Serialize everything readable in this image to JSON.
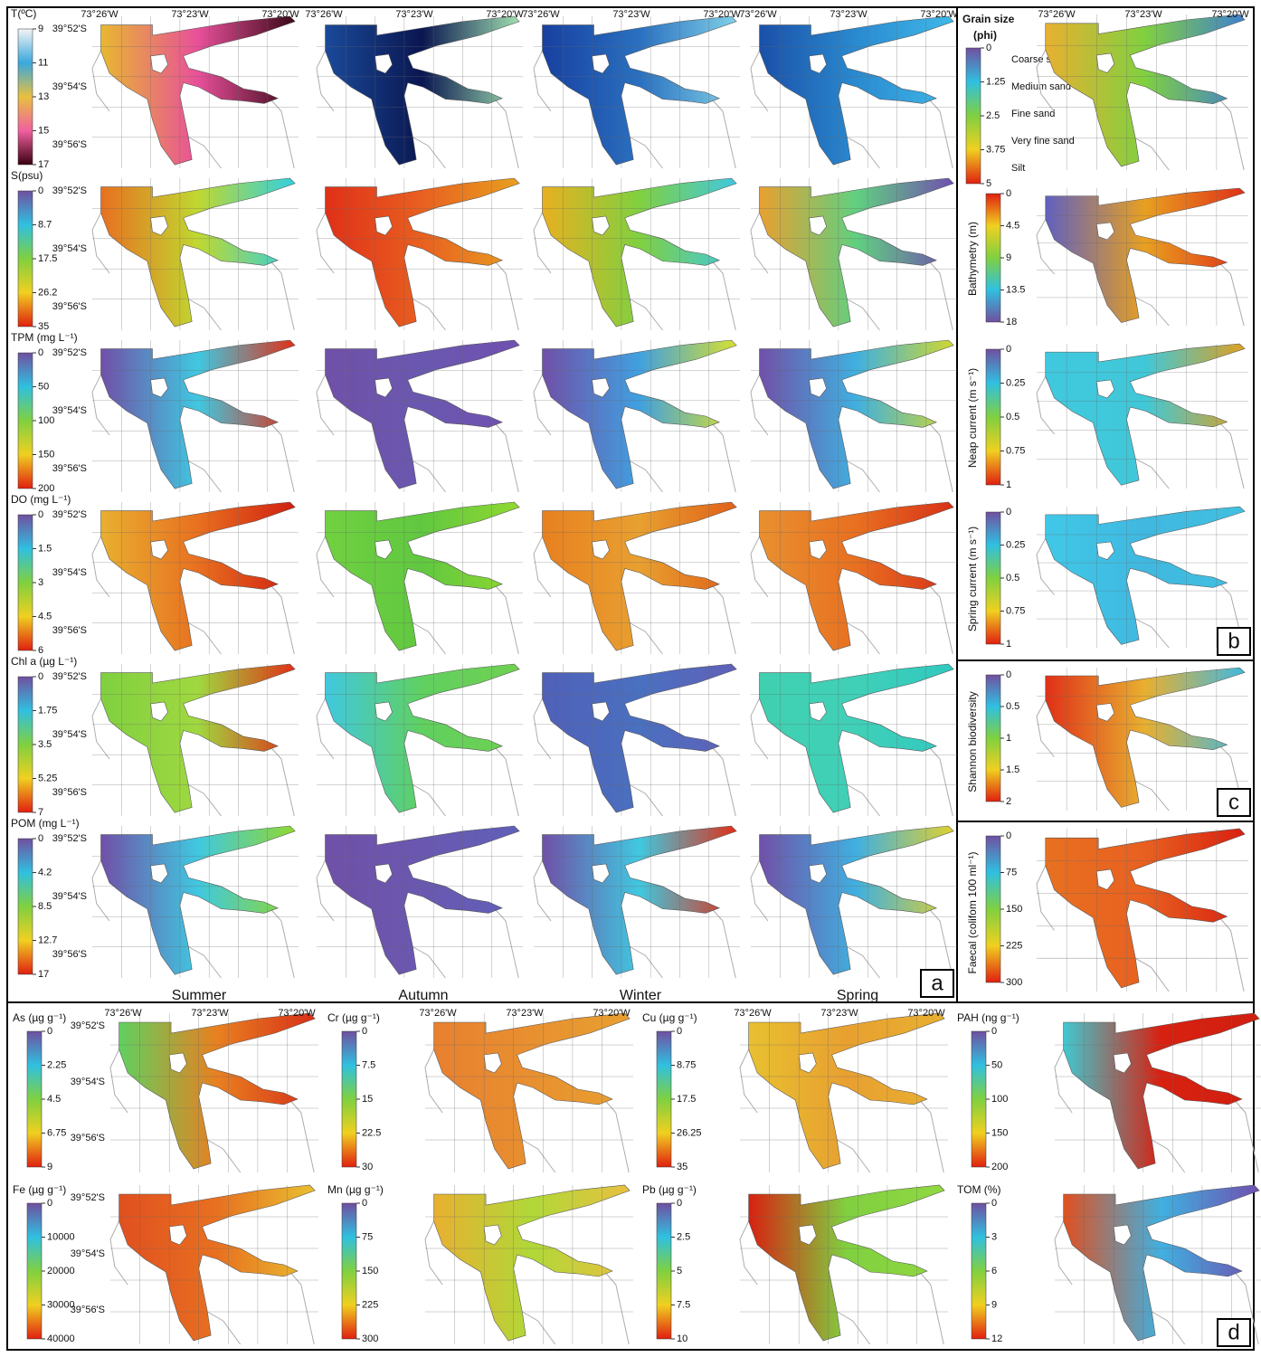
{
  "panel_a": {
    "label": "a",
    "seasons": [
      "Summer",
      "Autumn",
      "Winter",
      "Spring"
    ],
    "lon_labels": [
      "73°26'W",
      "73°23'W",
      "73°20'W"
    ],
    "lat_labels": [
      "39°52'S",
      "39°54'S",
      "39°56'S"
    ],
    "rows": [
      {
        "variable": "T(ºC)",
        "ticks": [
          "9",
          "11",
          "13",
          "15",
          "17"
        ],
        "scale": [
          "#f4f4f4",
          "#3aa8dc",
          "#e8c040",
          "#f060a0",
          "#3a0010"
        ],
        "maps": [
          [
            "#e8b830",
            "#e8509a",
            "#3a0818"
          ],
          [
            "#1a4a9a",
            "#0a1650",
            "#a0e0b0"
          ],
          [
            "#1840a0",
            "#2a70c0",
            "#80d0e8"
          ],
          [
            "#1a50a8",
            "#2a8ad0",
            "#40b8e8"
          ]
        ]
      },
      {
        "variable": "S(psu)",
        "ticks": [
          "0",
          "8.7",
          "17.5",
          "26.2",
          "35"
        ],
        "scale": [
          "#7050a0",
          "#30c0e0",
          "#80d040",
          "#f0d020",
          "#e02010"
        ],
        "maps": [
          [
            "#e87020",
            "#c0d830",
            "#30d0e0"
          ],
          [
            "#e03018",
            "#e86020",
            "#e8a020"
          ],
          [
            "#e8b020",
            "#80d040",
            "#40c8e0"
          ],
          [
            "#e8a030",
            "#60d080",
            "#7050b0"
          ]
        ]
      },
      {
        "variable": "TPM (mg L⁻¹)",
        "ticks": [
          "0",
          "50",
          "100",
          "150",
          "200"
        ],
        "scale": [
          "#7050a0",
          "#30c0e0",
          "#80d040",
          "#f0d020",
          "#e02010"
        ],
        "maps": [
          [
            "#7050a8",
            "#40c8e0",
            "#e03018"
          ],
          [
            "#7050a8",
            "#6a58b0",
            "#7050b0"
          ],
          [
            "#7050a8",
            "#40a0e0",
            "#d8e030"
          ],
          [
            "#7050a8",
            "#40b0e0",
            "#d0d830"
          ]
        ]
      },
      {
        "variable": "DO (mg L⁻¹)",
        "ticks": [
          "0",
          "1.5",
          "3",
          "4.5",
          "6"
        ],
        "scale": [
          "#7050a0",
          "#30c0e0",
          "#80d040",
          "#f0d020",
          "#e02010"
        ],
        "maps": [
          [
            "#e8b030",
            "#e87020",
            "#d02010"
          ],
          [
            "#70d040",
            "#60c840",
            "#90d830"
          ],
          [
            "#e88020",
            "#e8a030",
            "#e06018"
          ],
          [
            "#e89030",
            "#e87020",
            "#d83018"
          ]
        ]
      },
      {
        "variable": "Chl a (µg L⁻¹)",
        "ticks": [
          "0",
          "1.75",
          "3.5",
          "5.25",
          "7"
        ],
        "scale": [
          "#7050a0",
          "#30c0e0",
          "#80d040",
          "#f0d020",
          "#e02010"
        ],
        "maps": [
          [
            "#80d040",
            "#a0d840",
            "#e03018"
          ],
          [
            "#40c8e0",
            "#60d060",
            "#70d050"
          ],
          [
            "#5060b8",
            "#4a70c0",
            "#6060b8"
          ],
          [
            "#40d0b0",
            "#40d0b8",
            "#30c8c0"
          ]
        ]
      },
      {
        "variable": "POM (mg L⁻¹)",
        "ticks": [
          "0",
          "4.2",
          "8.5",
          "12.7",
          "17"
        ],
        "scale": [
          "#7050a0",
          "#30c0e0",
          "#80d040",
          "#f0d020",
          "#e02010"
        ],
        "maps": [
          [
            "#7050a8",
            "#40c8e0",
            "#90d830"
          ],
          [
            "#7050a8",
            "#6a58b0",
            "#6060b8"
          ],
          [
            "#7050a8",
            "#40c8e0",
            "#e03018"
          ],
          [
            "#7050a8",
            "#40b0e0",
            "#e0d030"
          ]
        ]
      }
    ]
  },
  "panel_b": {
    "label": "b",
    "rows": [
      {
        "variable": "Grain size",
        "unit": "(phi)",
        "ticks": [
          "0",
          "1.25",
          "2.5",
          "3.75",
          "5"
        ],
        "classes": [
          "Coarse sand",
          "Medium sand",
          "Fine sand",
          "Very fine sand",
          "Silt"
        ],
        "scale": [
          "#7050a0",
          "#30c0e0",
          "#80d040",
          "#f0d020",
          "#e02010"
        ],
        "map": [
          "#e8b030",
          "#80d040",
          "#4080d0"
        ]
      },
      {
        "variable": "Bathymetry (m)",
        "ticks": [
          "0",
          "4.5",
          "9",
          "13.5",
          "18"
        ],
        "scale": [
          "#e02010",
          "#f0d020",
          "#80d040",
          "#30c0e0",
          "#7050a0"
        ],
        "map": [
          "#6060c0",
          "#e8a020",
          "#e03018"
        ]
      },
      {
        "variable": "Neap current (m s⁻¹)",
        "ticks": [
          "0",
          "0.25",
          "0.5",
          "0.75",
          "1"
        ],
        "scale": [
          "#7050a0",
          "#30c0e0",
          "#80d040",
          "#f0d020",
          "#e02010"
        ],
        "map": [
          "#40c8e0",
          "#40c8d8",
          "#e0a020"
        ]
      },
      {
        "variable": "Spring current (m s⁻¹)",
        "ticks": [
          "0",
          "0.25",
          "0.5",
          "0.75",
          "1"
        ],
        "scale": [
          "#7050a0",
          "#30c0e0",
          "#80d040",
          "#f0d020",
          "#e02010"
        ],
        "map": [
          "#40c8e8",
          "#40b8e0",
          "#40c0e0"
        ]
      }
    ]
  },
  "panel_c": {
    "label": "c",
    "variable": "Shannon biodiversity",
    "ticks": [
      "0",
      "0.5",
      "1",
      "1.5",
      "2"
    ],
    "scale": [
      "#7050a0",
      "#30c0e0",
      "#80d040",
      "#f0d020",
      "#e02010"
    ],
    "map": [
      "#e03018",
      "#e8b030",
      "#40b8e0"
    ]
  },
  "panel_faecal": {
    "variable": "Faecal (colifom 100 ml⁻¹)",
    "ticks": [
      "0",
      "75",
      "150",
      "225",
      "300"
    ],
    "scale": [
      "#7050a0",
      "#30c0e0",
      "#80d040",
      "#f0d020",
      "#e02010"
    ],
    "map": [
      "#e87020",
      "#e86020",
      "#d82010"
    ]
  },
  "panel_d": {
    "label": "d",
    "lon_labels": [
      "73°26'W",
      "73°23'W",
      "73°20'W"
    ],
    "lat_labels": [
      "39°52'S",
      "39°54'S",
      "39°56'S"
    ],
    "items": [
      {
        "variable": "As (µg g⁻¹)",
        "ticks": [
          "0",
          "2.25",
          "4.5",
          "6.75",
          "9"
        ],
        "map": [
          "#60d060",
          "#e88020",
          "#d83018"
        ]
      },
      {
        "variable": "Cr (µg g⁻¹)",
        "ticks": [
          "0",
          "7.5",
          "15",
          "22.5",
          "30"
        ],
        "map": [
          "#e88030",
          "#e89030",
          "#e8a030"
        ]
      },
      {
        "variable": "Cu (µg g⁻¹)",
        "ticks": [
          "0",
          "8.75",
          "17.5",
          "26.25",
          "35"
        ],
        "map": [
          "#e8c030",
          "#e8a030",
          "#e8b030"
        ]
      },
      {
        "variable": "PAH (ng g⁻¹)",
        "ticks": [
          "0",
          "50",
          "100",
          "150",
          "200"
        ],
        "map": [
          "#40c8d0",
          "#d82010",
          "#d02010"
        ]
      },
      {
        "variable": "Fe (µg g⁻¹)",
        "ticks": [
          "0",
          "10000",
          "20000",
          "30000",
          "40000"
        ],
        "map": [
          "#e05020",
          "#e87020",
          "#e8c030"
        ]
      },
      {
        "variable": "Mn (µg g⁻¹)",
        "ticks": [
          "0",
          "75",
          "150",
          "225",
          "300"
        ],
        "map": [
          "#e8b030",
          "#b0d838",
          "#e8c040"
        ]
      },
      {
        "variable": "Pb (µg g⁻¹)",
        "ticks": [
          "0",
          "2.5",
          "5",
          "7.5",
          "10"
        ],
        "map": [
          "#d82010",
          "#80d040",
          "#90d840"
        ]
      },
      {
        "variable": "TOM (%)",
        "ticks": [
          "0",
          "3",
          "6",
          "9",
          "12"
        ],
        "map": [
          "#e05020",
          "#40b0e0",
          "#7050b0"
        ]
      }
    ],
    "scale": [
      "#7050a0",
      "#30c0e0",
      "#80d040",
      "#f0d020",
      "#e02010"
    ]
  }
}
